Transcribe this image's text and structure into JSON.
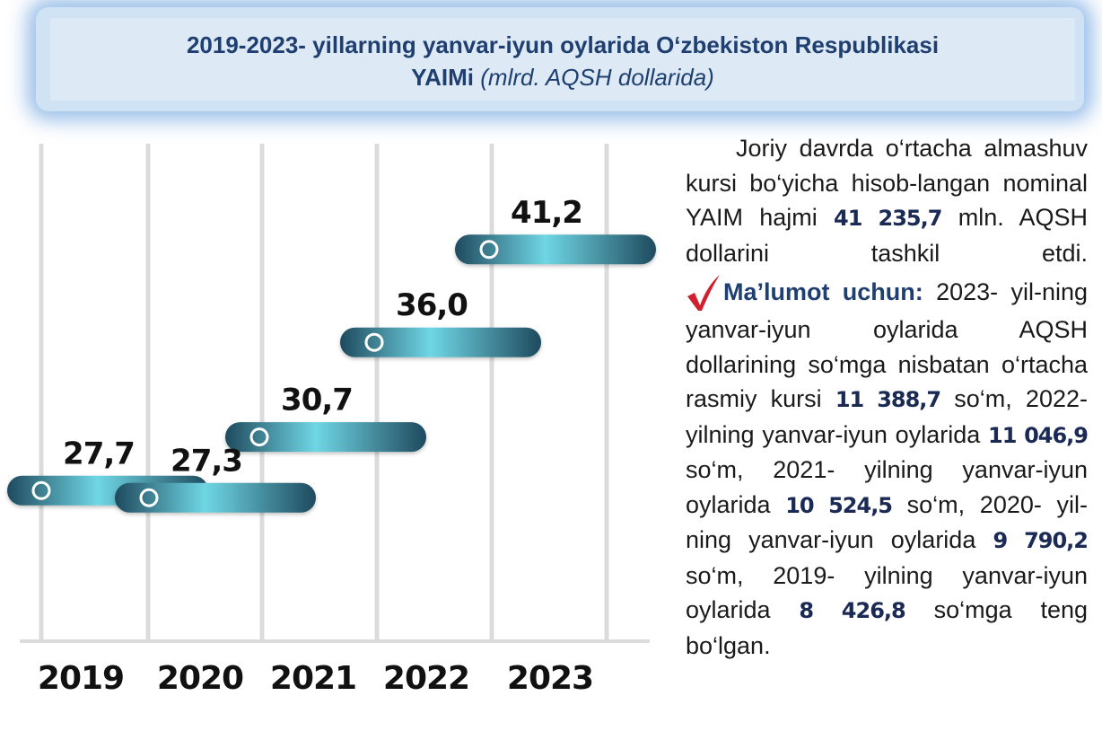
{
  "title": {
    "line1": "2019-2023- yillarning yanvar-iyun oylarida O‘zbekiston Respublikasi",
    "line2_bold": "YAIMi",
    "line2_italic": "(mlrd. AQSH dollarida)"
  },
  "chart_data": {
    "type": "bar",
    "orientation": "horizontal-floating",
    "title": "2019-2023- yillarning yanvar-iyun oylarida O‘zbekiston Respublikasi YAIMi (mlrd. AQSH dollarida)",
    "categories": [
      "2019",
      "2020",
      "2021",
      "2022",
      "2023"
    ],
    "values": [
      27.7,
      27.3,
      30.7,
      36.0,
      41.2
    ],
    "labels": [
      "27,7",
      "27,3",
      "30,7",
      "36,0",
      "41,2"
    ],
    "unit": "mlrd. AQSH dollari",
    "grid": true
  },
  "description": {
    "p1_before": "Joriy davrda o‘rtacha almashuv kursi bo‘yicha hisob-langan nominal YAIM hajmi",
    "p1_num": "41 235,7",
    "p1_after": "mln. AQSH dollarini tashkil etdi.",
    "note_label": "Ma’lumot uchun:",
    "note_a": "2023- yil-ning yanvar-iyun oylarida AQSH dollarining so‘mga nisbatan o‘rtacha rasmiy kursi",
    "rate_2023": "11 388,7",
    "note_b": "so‘m, 2022- yilning yanvar-iyun oylarida",
    "rate_2022": "11 046,9",
    "note_c": "so‘m, 2021- yilning yanvar-iyun oylarida",
    "rate_2021": "10 524,5",
    "note_d": "so‘m, 2020- yil-ning yanvar-iyun oylarida",
    "rate_2020": "9 790,2",
    "note_e": "so‘m, 2019- yilning yanvar-iyun oylarida",
    "rate_2019": "8 426,8",
    "note_f": "so‘mga teng bo‘lgan."
  },
  "colors": {
    "title_text": "#1f3f70",
    "bar_dark": "#1f4a5e",
    "bar_light": "#6fd6e4",
    "grid": "#dcdcdc",
    "check_red": "#d02030"
  }
}
